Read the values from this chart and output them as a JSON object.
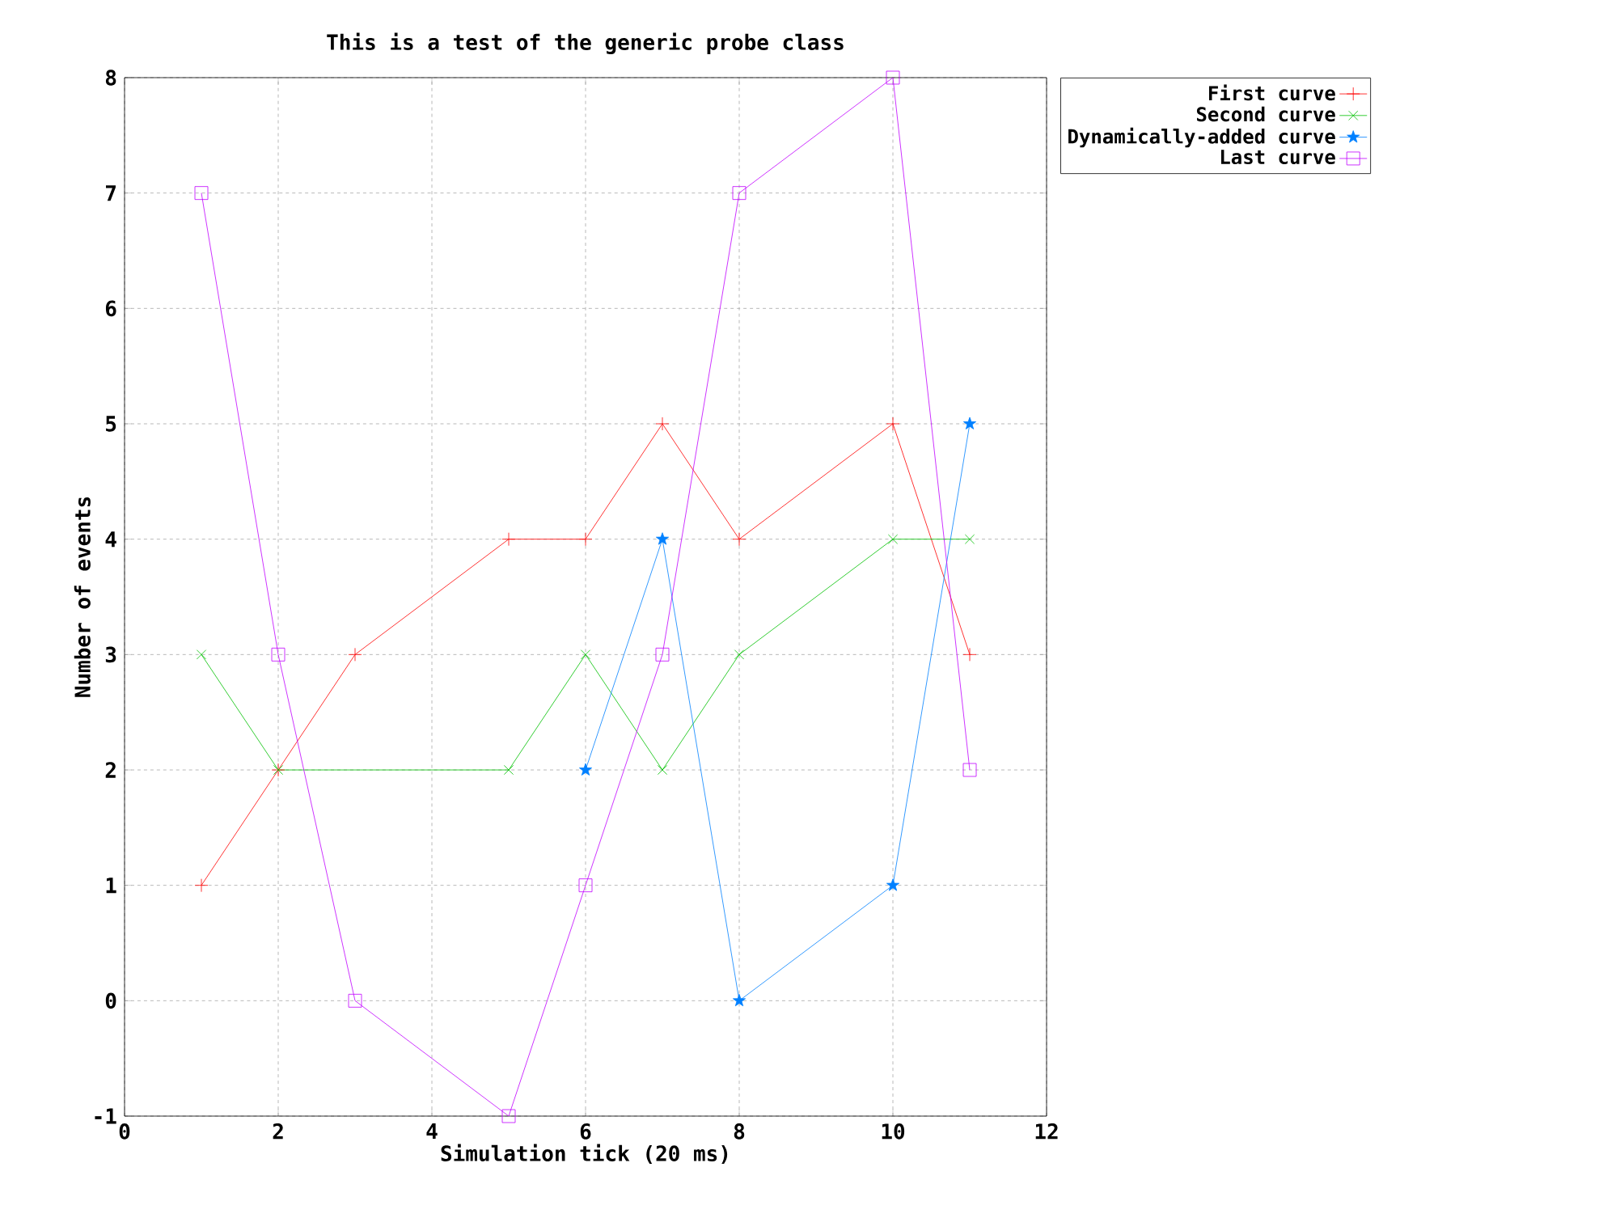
{
  "chart_data": {
    "type": "line",
    "title": "This is a test of the generic probe class",
    "xlabel": "Simulation tick (20 ms)",
    "ylabel": "Number of events",
    "xlim": [
      0,
      12
    ],
    "xticks": [
      0,
      2,
      4,
      6,
      8,
      10,
      12
    ],
    "ylim": [
      -1,
      8
    ],
    "yticks": [
      -1,
      0,
      1,
      2,
      3,
      4,
      5,
      6,
      7,
      8
    ],
    "grid": true,
    "legend": "outside top right",
    "series": [
      {
        "name": "First curve",
        "color": "#ff0000",
        "marker": "plus",
        "x": [
          1,
          2,
          3,
          5,
          6,
          7,
          8,
          10,
          11
        ],
        "values": [
          1,
          2,
          3,
          4,
          4,
          5,
          4,
          5,
          3
        ]
      },
      {
        "name": "Second curve",
        "color": "#00c000",
        "marker": "cross",
        "x": [
          1,
          2,
          5,
          6,
          7,
          8,
          10,
          11
        ],
        "values": [
          3,
          2,
          2,
          3,
          2,
          3,
          4,
          4
        ]
      },
      {
        "name": "Dynamically-added curve",
        "color": "#0080ff",
        "marker": "star",
        "x": [
          6,
          7,
          8,
          10,
          11
        ],
        "values": [
          2,
          4,
          0,
          1,
          5
        ]
      },
      {
        "name": "Last curve",
        "color": "#c000ff",
        "marker": "square",
        "x": [
          1,
          2,
          3,
          5,
          6,
          7,
          8,
          10,
          11
        ],
        "values": [
          7,
          3,
          0,
          -1,
          1,
          3,
          7,
          8,
          2
        ]
      }
    ]
  }
}
